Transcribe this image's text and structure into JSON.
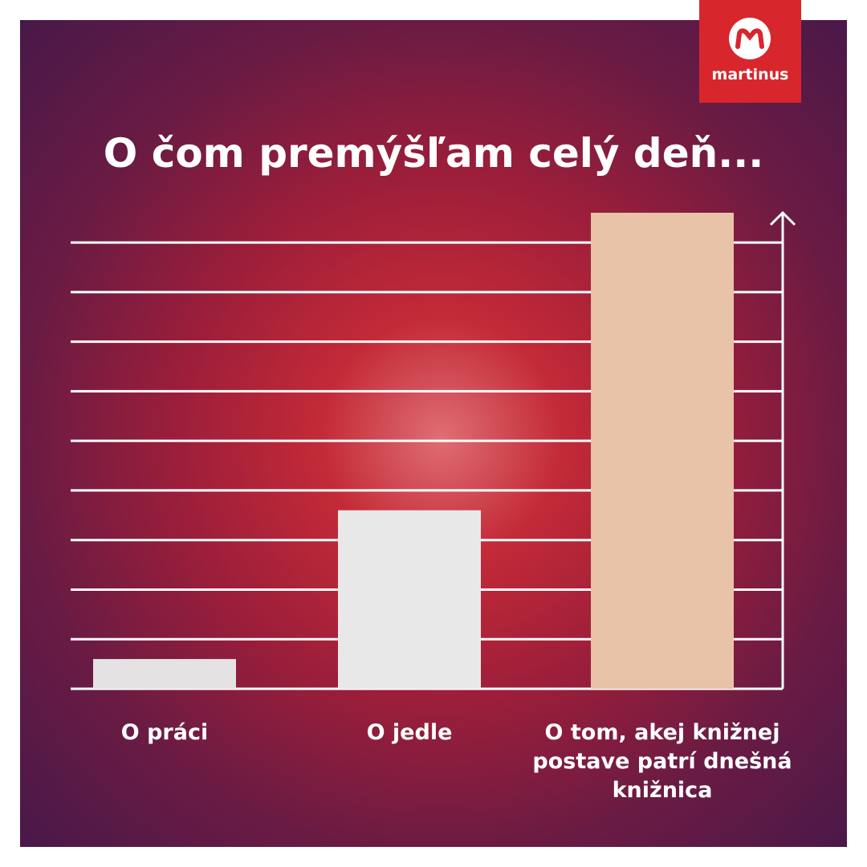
{
  "brand": "martinus",
  "chart_data": {
    "type": "bar",
    "title": "O čom premýšľam celý deň...",
    "categories": [
      "O práci",
      "O jedle",
      "O tom, akej knižnej postave patrí dnešná knižnica"
    ],
    "values": [
      0.6,
      3.6,
      9.6
    ],
    "colors": [
      "#e4e2e2",
      "#e9e8e8",
      "#e8c3a8"
    ],
    "ylim": [
      0,
      9.6
    ],
    "yticks": [
      0,
      1,
      2,
      3,
      4,
      5,
      6,
      7,
      8,
      9
    ],
    "grid": true
  }
}
